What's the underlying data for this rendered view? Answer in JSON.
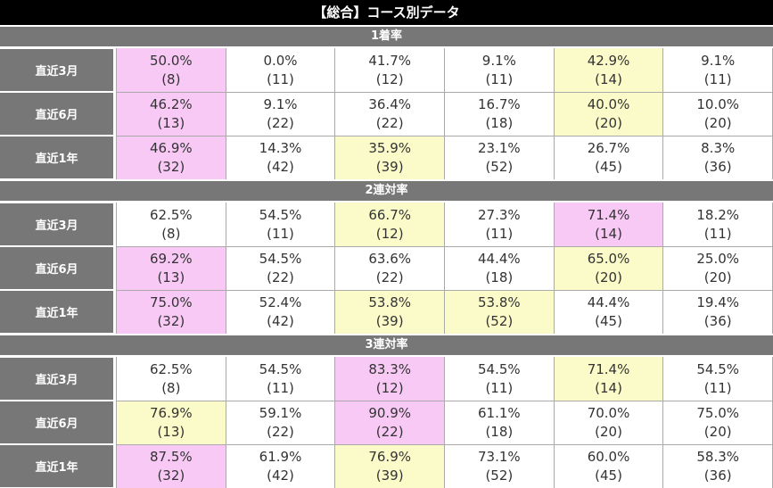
{
  "title": "【総合】コース別データ",
  "colors": {
    "title_bg": "#000000",
    "header_bg": "#777777",
    "highlight_pink": "#f9c9f6",
    "highlight_yellow": "#fbfbc9",
    "border": "#aaaaaa"
  },
  "sections": [
    {
      "title": "1着率",
      "rows": [
        {
          "label": "直近3月",
          "cells": [
            {
              "pct": "50.0%",
              "n": "(8)",
              "hl": "pink"
            },
            {
              "pct": "0.0%",
              "n": "(11)",
              "hl": ""
            },
            {
              "pct": "41.7%",
              "n": "(12)",
              "hl": ""
            },
            {
              "pct": "9.1%",
              "n": "(11)",
              "hl": ""
            },
            {
              "pct": "42.9%",
              "n": "(14)",
              "hl": "yellow"
            },
            {
              "pct": "9.1%",
              "n": "(11)",
              "hl": ""
            }
          ]
        },
        {
          "label": "直近6月",
          "cells": [
            {
              "pct": "46.2%",
              "n": "(13)",
              "hl": "pink"
            },
            {
              "pct": "9.1%",
              "n": "(22)",
              "hl": ""
            },
            {
              "pct": "36.4%",
              "n": "(22)",
              "hl": ""
            },
            {
              "pct": "16.7%",
              "n": "(18)",
              "hl": ""
            },
            {
              "pct": "40.0%",
              "n": "(20)",
              "hl": "yellow"
            },
            {
              "pct": "10.0%",
              "n": "(20)",
              "hl": ""
            }
          ]
        },
        {
          "label": "直近1年",
          "cells": [
            {
              "pct": "46.9%",
              "n": "(32)",
              "hl": "pink"
            },
            {
              "pct": "14.3%",
              "n": "(42)",
              "hl": ""
            },
            {
              "pct": "35.9%",
              "n": "(39)",
              "hl": "yellow"
            },
            {
              "pct": "23.1%",
              "n": "(52)",
              "hl": ""
            },
            {
              "pct": "26.7%",
              "n": "(45)",
              "hl": ""
            },
            {
              "pct": "8.3%",
              "n": "(36)",
              "hl": ""
            }
          ]
        }
      ]
    },
    {
      "title": "2連対率",
      "rows": [
        {
          "label": "直近3月",
          "cells": [
            {
              "pct": "62.5%",
              "n": "(8)",
              "hl": ""
            },
            {
              "pct": "54.5%",
              "n": "(11)",
              "hl": ""
            },
            {
              "pct": "66.7%",
              "n": "(12)",
              "hl": "yellow"
            },
            {
              "pct": "27.3%",
              "n": "(11)",
              "hl": ""
            },
            {
              "pct": "71.4%",
              "n": "(14)",
              "hl": "pink"
            },
            {
              "pct": "18.2%",
              "n": "(11)",
              "hl": ""
            }
          ]
        },
        {
          "label": "直近6月",
          "cells": [
            {
              "pct": "69.2%",
              "n": "(13)",
              "hl": "pink"
            },
            {
              "pct": "54.5%",
              "n": "(22)",
              "hl": ""
            },
            {
              "pct": "63.6%",
              "n": "(22)",
              "hl": ""
            },
            {
              "pct": "44.4%",
              "n": "(18)",
              "hl": ""
            },
            {
              "pct": "65.0%",
              "n": "(20)",
              "hl": "yellow"
            },
            {
              "pct": "25.0%",
              "n": "(20)",
              "hl": ""
            }
          ]
        },
        {
          "label": "直近1年",
          "cells": [
            {
              "pct": "75.0%",
              "n": "(32)",
              "hl": "pink"
            },
            {
              "pct": "52.4%",
              "n": "(42)",
              "hl": ""
            },
            {
              "pct": "53.8%",
              "n": "(39)",
              "hl": "yellow"
            },
            {
              "pct": "53.8%",
              "n": "(52)",
              "hl": "yellow"
            },
            {
              "pct": "44.4%",
              "n": "(45)",
              "hl": ""
            },
            {
              "pct": "19.4%",
              "n": "(36)",
              "hl": ""
            }
          ]
        }
      ]
    },
    {
      "title": "3連対率",
      "rows": [
        {
          "label": "直近3月",
          "cells": [
            {
              "pct": "62.5%",
              "n": "(8)",
              "hl": ""
            },
            {
              "pct": "54.5%",
              "n": "(11)",
              "hl": ""
            },
            {
              "pct": "83.3%",
              "n": "(12)",
              "hl": "pink"
            },
            {
              "pct": "54.5%",
              "n": "(11)",
              "hl": ""
            },
            {
              "pct": "71.4%",
              "n": "(14)",
              "hl": "yellow"
            },
            {
              "pct": "54.5%",
              "n": "(11)",
              "hl": ""
            }
          ]
        },
        {
          "label": "直近6月",
          "cells": [
            {
              "pct": "76.9%",
              "n": "(13)",
              "hl": "yellow"
            },
            {
              "pct": "59.1%",
              "n": "(22)",
              "hl": ""
            },
            {
              "pct": "90.9%",
              "n": "(22)",
              "hl": "pink"
            },
            {
              "pct": "61.1%",
              "n": "(18)",
              "hl": ""
            },
            {
              "pct": "70.0%",
              "n": "(20)",
              "hl": ""
            },
            {
              "pct": "75.0%",
              "n": "(20)",
              "hl": ""
            }
          ]
        },
        {
          "label": "直近1年",
          "cells": [
            {
              "pct": "87.5%",
              "n": "(32)",
              "hl": "pink"
            },
            {
              "pct": "61.9%",
              "n": "(42)",
              "hl": ""
            },
            {
              "pct": "76.9%",
              "n": "(39)",
              "hl": "yellow"
            },
            {
              "pct": "73.1%",
              "n": "(52)",
              "hl": ""
            },
            {
              "pct": "60.0%",
              "n": "(45)",
              "hl": ""
            },
            {
              "pct": "58.3%",
              "n": "(36)",
              "hl": ""
            }
          ]
        }
      ]
    }
  ]
}
